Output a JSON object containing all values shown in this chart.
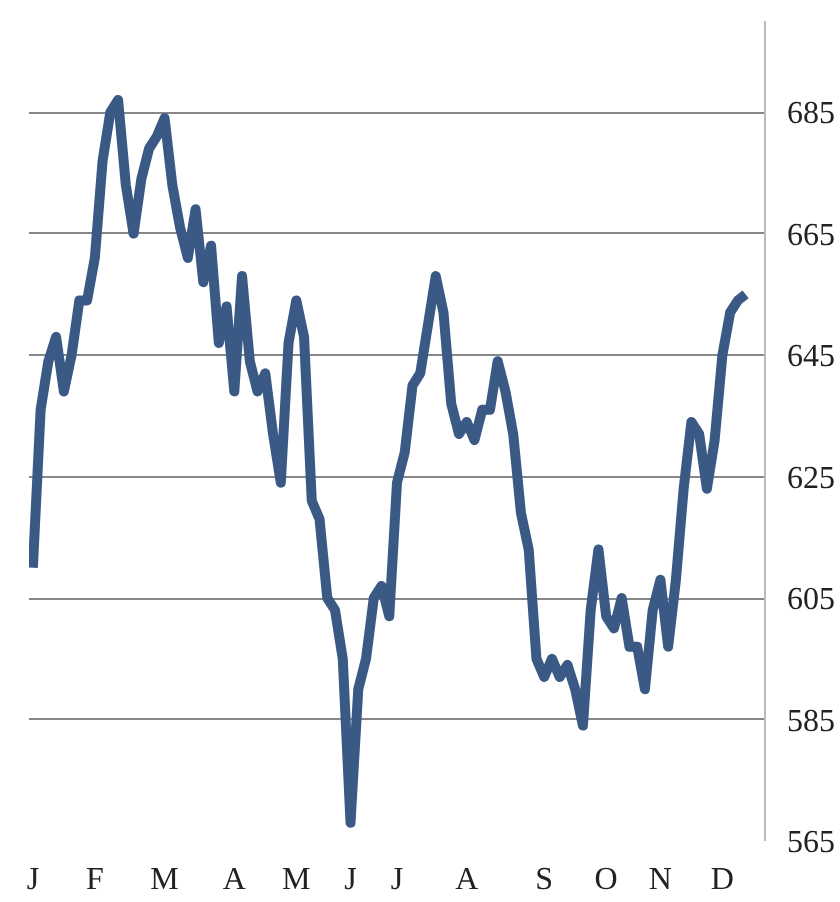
{
  "chart_data": {
    "type": "line",
    "categories": [
      "J",
      null,
      null,
      null,
      null,
      null,
      null,
      null,
      "F",
      null,
      null,
      null,
      null,
      null,
      null,
      null,
      null,
      "M",
      null,
      null,
      null,
      null,
      null,
      null,
      null,
      null,
      "A",
      null,
      null,
      null,
      null,
      null,
      null,
      null,
      "M",
      null,
      null,
      null,
      null,
      null,
      null,
      "J",
      null,
      null,
      null,
      null,
      null,
      "J",
      null,
      null,
      null,
      null,
      null,
      null,
      null,
      null,
      "A",
      null,
      null,
      null,
      null,
      null,
      null,
      null,
      null,
      null,
      "S",
      null,
      null,
      null,
      null,
      null,
      null,
      null,
      "O",
      null,
      null,
      null,
      null,
      null,
      null,
      "N",
      null,
      null,
      null,
      null,
      null,
      null,
      null,
      "D",
      null,
      null,
      null
    ],
    "series": [
      {
        "color": "#3a5a85",
        "values": [
          610,
          636,
          644,
          648,
          639,
          645,
          654,
          654,
          661,
          677,
          685,
          687,
          673,
          665,
          674,
          679,
          681,
          684,
          673,
          666,
          661,
          669,
          657,
          663,
          647,
          653,
          639,
          658,
          644,
          639,
          642,
          632,
          624,
          647,
          654,
          648,
          621,
          618,
          605,
          603,
          595,
          568,
          590,
          595,
          605,
          607,
          602,
          624,
          629,
          640,
          642,
          650,
          658,
          652,
          637,
          632,
          634,
          631,
          636,
          636,
          644,
          639,
          632,
          619,
          613,
          595,
          592,
          595,
          592,
          594,
          590,
          584,
          603,
          613,
          602,
          600,
          605,
          597,
          597,
          590,
          603,
          608,
          597,
          608,
          623,
          634,
          632,
          623,
          631,
          645,
          652,
          654,
          655
        ]
      }
    ],
    "ylim": [
      565,
      700
    ],
    "yticks": [
      565,
      585,
      605,
      625,
      645,
      665,
      685
    ],
    "grid": "y",
    "line_style": "solid"
  }
}
